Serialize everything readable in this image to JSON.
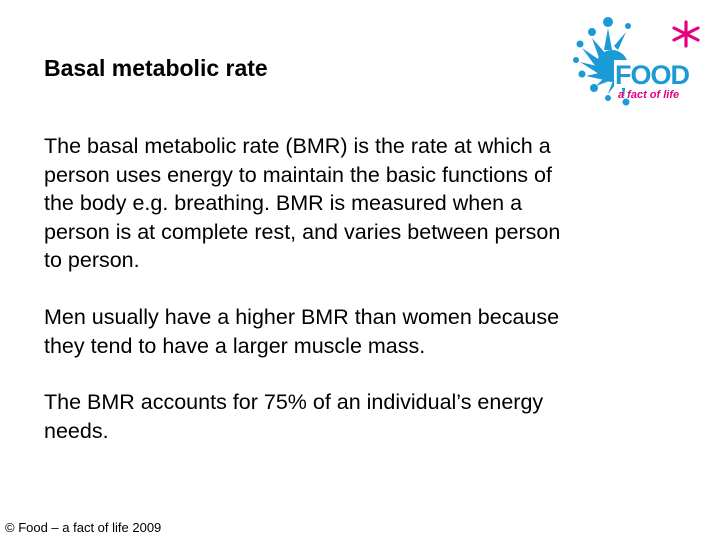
{
  "slide": {
    "title": "Basal metabolic rate",
    "paragraphs": [
      {
        "lines": [
          "The basal metabolic rate (BMR) is the rate at which a",
          "person uses energy to maintain the basic functions of",
          "the body e.g. breathing.  BMR is measured when a",
          "person is at complete rest, and varies between person",
          "to person."
        ]
      },
      {
        "lines": [
          "Men usually have a higher BMR than women because",
          "they tend to have a larger muscle mass."
        ]
      },
      {
        "lines": [
          "The BMR accounts for 75% of an individual’s energy",
          "needs."
        ]
      }
    ],
    "footer": "© Food – a fact of life 2009"
  },
  "logo": {
    "word": "FOOD",
    "tagline": "a fact of life",
    "colors": {
      "splash": "#1b9ad6",
      "text": "#1b9ad6",
      "star": "#e5007e"
    }
  }
}
